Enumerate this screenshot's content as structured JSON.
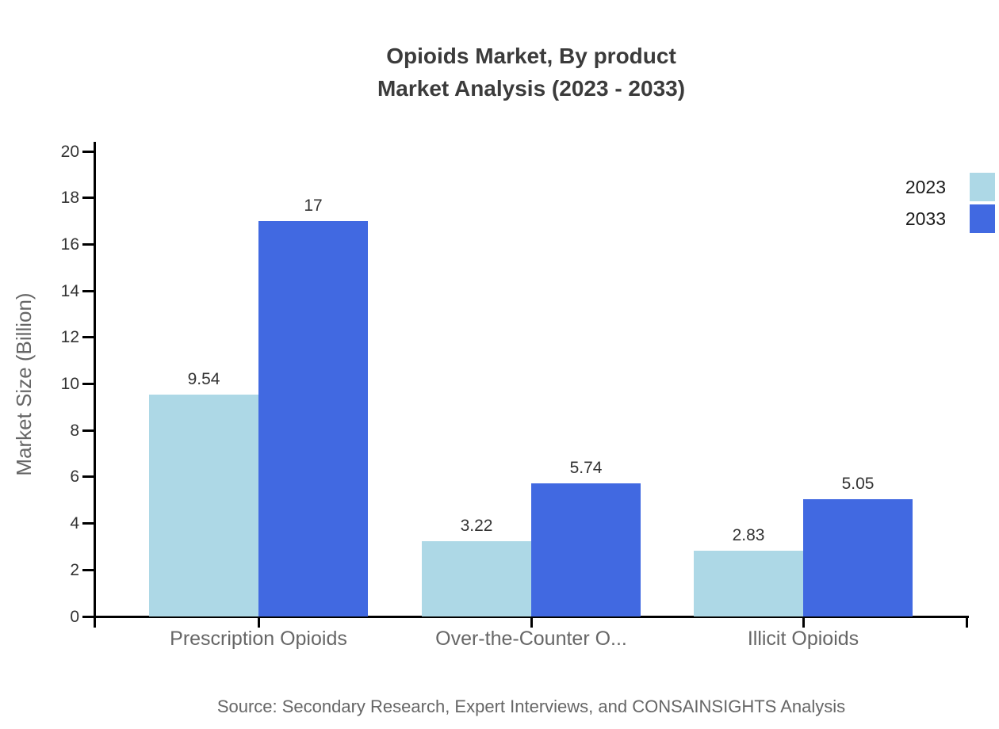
{
  "header": {
    "title_line1": "Opioids Market, By product",
    "title_line2": "Market Analysis (2023 - 2033)"
  },
  "chart_data": {
    "type": "bar",
    "title": "Opioids Market, By product Market Analysis (2023 - 2033)",
    "categories": [
      "Prescription Opioids",
      "Over-the-Counter O...",
      "Illicit Opioids"
    ],
    "series": [
      {
        "name": "2023",
        "color": "#ADD8E6",
        "values": [
          9.54,
          3.22,
          2.83
        ],
        "labels": [
          "9.54",
          "3.22",
          "2.83"
        ]
      },
      {
        "name": "2033",
        "color": "#4169E1",
        "values": [
          17,
          5.74,
          5.05
        ],
        "labels": [
          "17",
          "5.74",
          "5.05"
        ]
      }
    ],
    "xlabel": "",
    "ylabel": "Market Size (Billion)",
    "ylim": [
      0,
      20
    ],
    "ytick_step": 2,
    "ytick_labels": [
      "0",
      "2",
      "4",
      "6",
      "8",
      "10",
      "12",
      "14",
      "16",
      "18",
      "20"
    ],
    "grid": false,
    "legend_position": "top-right",
    "bar_value_labels_shown": true
  },
  "source": {
    "text": "Source: Secondary Research, Expert Interviews, and CONSAINSIGHTS Analysis"
  }
}
